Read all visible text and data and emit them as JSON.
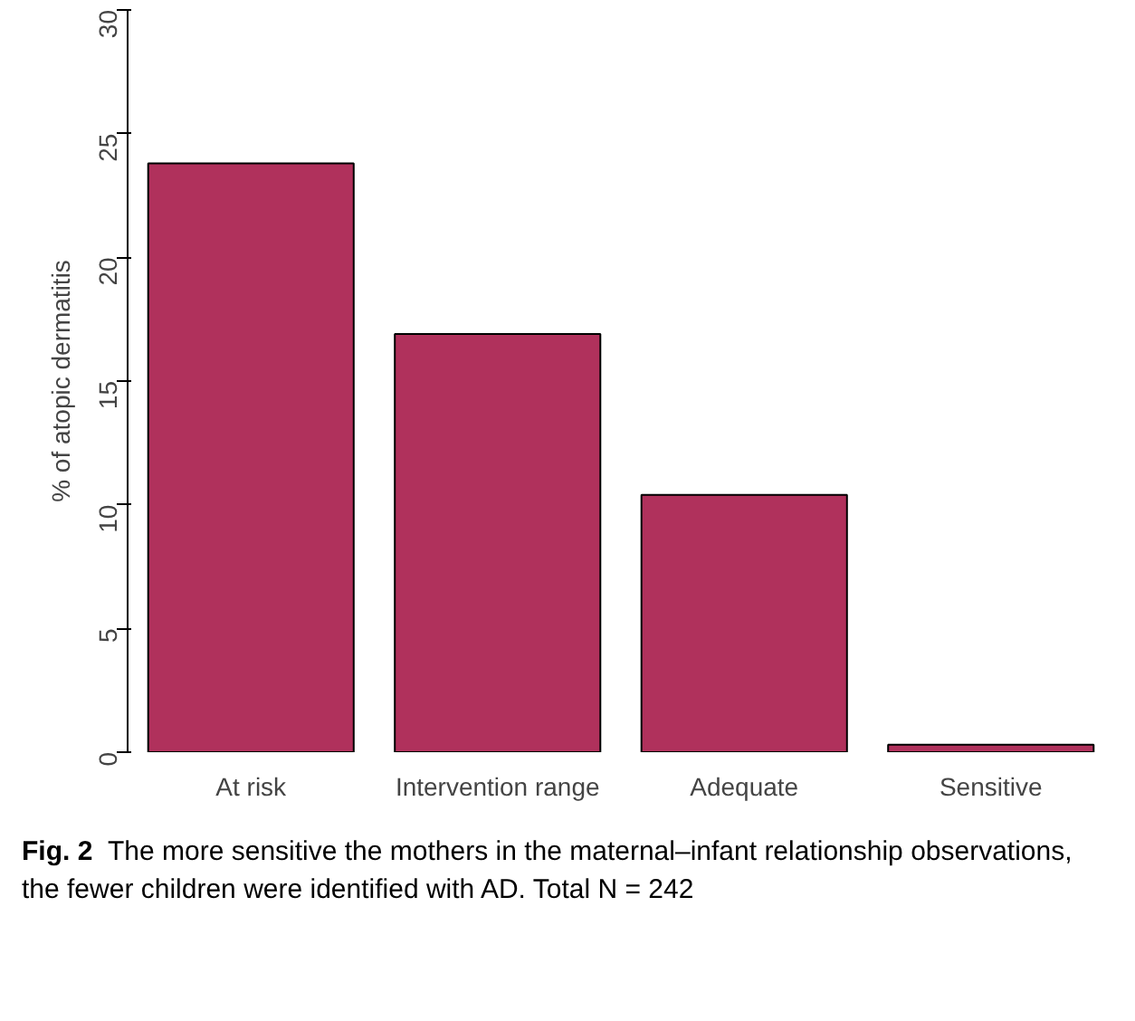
{
  "chart_data": {
    "type": "bar",
    "ylabel": "% of atopic dermatitis",
    "categories": [
      "At risk",
      "Intervention range",
      "Adequate",
      "Sensitive"
    ],
    "values": [
      23.8,
      16.9,
      10.4,
      0.3
    ],
    "color": "#b0315c",
    "ylim": [
      0,
      30
    ],
    "yticks": [
      0,
      5,
      10,
      15,
      20,
      25,
      30
    ],
    "grid": false,
    "annotations": [
      "Fig. 2",
      "The more sensitive the mothers in the maternal–infant relationship observations, the fewer children were identified with AD. Total N = 242"
    ]
  }
}
